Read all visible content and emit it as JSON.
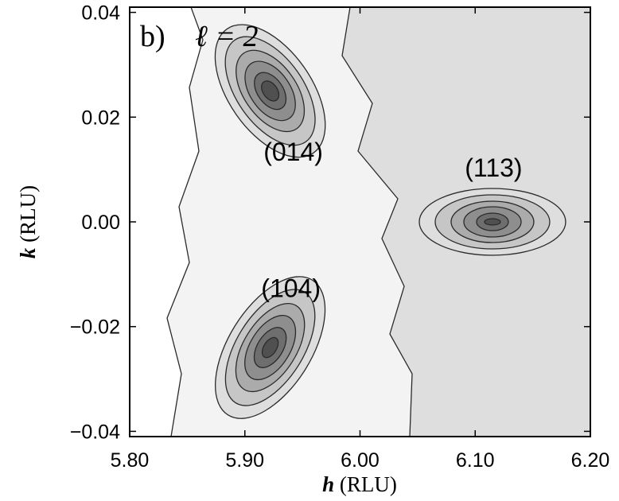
{
  "chart_data": {
    "type": "contour",
    "panel_label": "b)",
    "panel_condition": "ℓ = 2",
    "xlabel_var": "h",
    "xlabel_unit": "(RLU)",
    "ylabel_var": "k",
    "ylabel_unit": "(RLU)",
    "xlim": [
      5.8,
      6.2
    ],
    "ylim": [
      -0.041,
      0.041
    ],
    "xticks": [
      5.8,
      5.9,
      6.0,
      6.1,
      6.2
    ],
    "xtick_labels": [
      "5.80",
      "5.90",
      "6.00",
      "6.10",
      "6.20"
    ],
    "yticks": [
      -0.04,
      -0.02,
      0.0,
      0.02,
      0.04
    ],
    "ytick_labels": [
      "−0.04",
      "−0.02",
      "0.00",
      "0.02",
      "0.04"
    ],
    "peaks": [
      {
        "label": "(014)",
        "h": 5.922,
        "k": 0.025,
        "label_h": 5.942,
        "label_k": 0.0135
      },
      {
        "label": "(113)",
        "h": 6.115,
        "k": 0.0,
        "label_h": 6.116,
        "label_k": 0.0105
      },
      {
        "label": "(104)",
        "h": 5.922,
        "k": -0.024,
        "label_h": 5.94,
        "label_k": -0.0125
      }
    ],
    "contour_fill_colors": [
      "#f3f3f3",
      "#dedede",
      "#c6c6c6",
      "#ababab",
      "#8e8e8e",
      "#6e6e6e",
      "#505050",
      "#343434"
    ]
  }
}
